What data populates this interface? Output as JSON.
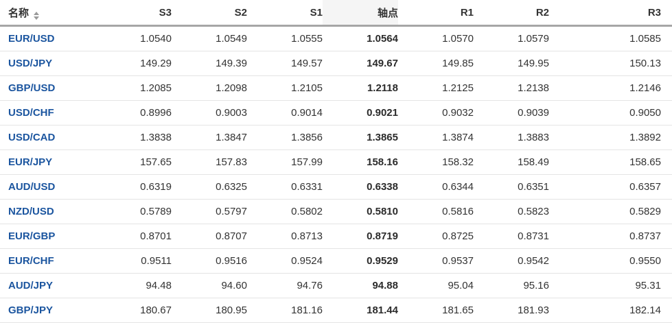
{
  "colors": {
    "pair_link_blue": "#1b559f",
    "header_rule_gray": "#a6a6a6",
    "row_divider_gray": "#e4e4e4",
    "text_dark": "#333333",
    "sort_arrow_gray": "#9a9a9a",
    "pivot_header_bg": "#f5f5f5"
  },
  "table": {
    "columns": [
      {
        "id": "name",
        "label": "名称",
        "align": "left",
        "sortable": true
      },
      {
        "id": "s3",
        "label": "S3"
      },
      {
        "id": "s2",
        "label": "S2"
      },
      {
        "id": "s1",
        "label": "S1"
      },
      {
        "id": "pivot",
        "label": "轴点",
        "emphasis": true
      },
      {
        "id": "r1",
        "label": "R1"
      },
      {
        "id": "r2",
        "label": "R2"
      },
      {
        "id": "r3",
        "label": "R3",
        "last": true
      }
    ],
    "rows": [
      {
        "name": "EUR/USD",
        "s3": "1.0540",
        "s2": "1.0549",
        "s1": "1.0555",
        "pivot": "1.0564",
        "r1": "1.0570",
        "r2": "1.0579",
        "r3": "1.0585"
      },
      {
        "name": "USD/JPY",
        "s3": "149.29",
        "s2": "149.39",
        "s1": "149.57",
        "pivot": "149.67",
        "r1": "149.85",
        "r2": "149.95",
        "r3": "150.13"
      },
      {
        "name": "GBP/USD",
        "s3": "1.2085",
        "s2": "1.2098",
        "s1": "1.2105",
        "pivot": "1.2118",
        "r1": "1.2125",
        "r2": "1.2138",
        "r3": "1.2146"
      },
      {
        "name": "USD/CHF",
        "s3": "0.8996",
        "s2": "0.9003",
        "s1": "0.9014",
        "pivot": "0.9021",
        "r1": "0.9032",
        "r2": "0.9039",
        "r3": "0.9050"
      },
      {
        "name": "USD/CAD",
        "s3": "1.3838",
        "s2": "1.3847",
        "s1": "1.3856",
        "pivot": "1.3865",
        "r1": "1.3874",
        "r2": "1.3883",
        "r3": "1.3892"
      },
      {
        "name": "EUR/JPY",
        "s3": "157.65",
        "s2": "157.83",
        "s1": "157.99",
        "pivot": "158.16",
        "r1": "158.32",
        "r2": "158.49",
        "r3": "158.65"
      },
      {
        "name": "AUD/USD",
        "s3": "0.6319",
        "s2": "0.6325",
        "s1": "0.6331",
        "pivot": "0.6338",
        "r1": "0.6344",
        "r2": "0.6351",
        "r3": "0.6357"
      },
      {
        "name": "NZD/USD",
        "s3": "0.5789",
        "s2": "0.5797",
        "s1": "0.5802",
        "pivot": "0.5810",
        "r1": "0.5816",
        "r2": "0.5823",
        "r3": "0.5829"
      },
      {
        "name": "EUR/GBP",
        "s3": "0.8701",
        "s2": "0.8707",
        "s1": "0.8713",
        "pivot": "0.8719",
        "r1": "0.8725",
        "r2": "0.8731",
        "r3": "0.8737"
      },
      {
        "name": "EUR/CHF",
        "s3": "0.9511",
        "s2": "0.9516",
        "s1": "0.9524",
        "pivot": "0.9529",
        "r1": "0.9537",
        "r2": "0.9542",
        "r3": "0.9550"
      },
      {
        "name": "AUD/JPY",
        "s3": "94.48",
        "s2": "94.60",
        "s1": "94.76",
        "pivot": "94.88",
        "r1": "95.04",
        "r2": "95.16",
        "r3": "95.31"
      },
      {
        "name": "GBP/JPY",
        "s3": "180.67",
        "s2": "180.95",
        "s1": "181.16",
        "pivot": "181.44",
        "r1": "181.65",
        "r2": "181.93",
        "r3": "182.14"
      }
    ]
  }
}
